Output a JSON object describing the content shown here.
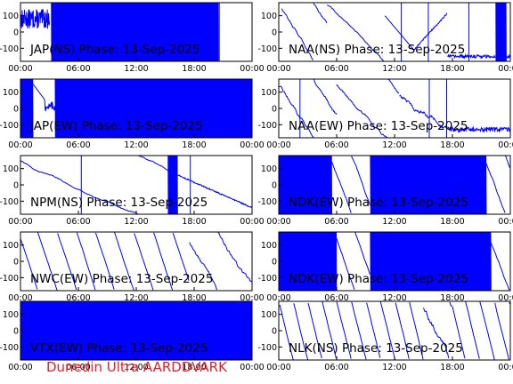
{
  "footer_text": "Dunedin Ultra AARDDVARK",
  "colors": {
    "trace": "#0000ff",
    "axes": "#000000",
    "footer": "#e0202a",
    "background": "#ffffff"
  },
  "chart_data": [
    {
      "type": "line",
      "title": "JAP(NS) Phase: 13-Sep-2025",
      "xticks": [
        "00:00",
        "06:00",
        "12:00",
        "18:00",
        "00:00"
      ],
      "yticks": [
        "100",
        "0",
        "-100"
      ],
      "ylim": [
        -180,
        180
      ],
      "xlim_hours": [
        0,
        24
      ],
      "grid": false,
      "pattern": "jap_ns"
    },
    {
      "type": "line",
      "title": "NAA(NS) Phase: 13-Sep-2025",
      "xticks": [
        "00:00",
        "06:00",
        "12:00",
        "18:00",
        "00:00"
      ],
      "yticks": [
        "100",
        "0",
        "-100"
      ],
      "ylim": [
        -180,
        180
      ],
      "xlim_hours": [
        0,
        24
      ],
      "grid": false,
      "pattern": "naa_ns"
    },
    {
      "type": "line",
      "title": "JAP(EW) Phase: 13-Sep-2025",
      "xticks": [
        "00:00",
        "06:00",
        "12:00",
        "18:00",
        "00:00"
      ],
      "yticks": [
        "100",
        "0",
        "-100"
      ],
      "ylim": [
        -180,
        180
      ],
      "xlim_hours": [
        0,
        24
      ],
      "grid": false,
      "pattern": "jap_ew"
    },
    {
      "type": "line",
      "title": "NAA(EW) Phase: 13-Sep-2025",
      "xticks": [
        "00:00",
        "06:00",
        "12:00",
        "18:00",
        "00:00"
      ],
      "yticks": [
        "100",
        "0",
        "-100"
      ],
      "ylim": [
        -180,
        180
      ],
      "xlim_hours": [
        0,
        24
      ],
      "grid": false,
      "pattern": "naa_ew"
    },
    {
      "type": "line",
      "title": "NPM(NS) Phase: 13-Sep-2025",
      "xticks": [
        "00:00",
        "06:00",
        "12:00",
        "18:00",
        "00:00"
      ],
      "yticks": [
        "100",
        "0",
        "-100"
      ],
      "ylim": [
        -180,
        180
      ],
      "xlim_hours": [
        0,
        24
      ],
      "grid": false,
      "pattern": "npm_ns"
    },
    {
      "type": "line",
      "title": "NDK(EW) Phase: 13-Sep-2025",
      "xticks": [
        "00:00",
        "06:00",
        "12:00",
        "18:00",
        "00:00"
      ],
      "yticks": [
        "100",
        "0",
        "-100"
      ],
      "ylim": [
        -180,
        180
      ],
      "xlim_hours": [
        0,
        24
      ],
      "grid": false,
      "pattern": "ndk_a"
    },
    {
      "type": "line",
      "title": "NWC(EW) Phase: 13-Sep-2025",
      "xticks": [
        "00:00",
        "06:00",
        "12:00",
        "18:00",
        "00:00"
      ],
      "yticks": [
        "100",
        "0",
        "-100"
      ],
      "ylim": [
        -180,
        180
      ],
      "xlim_hours": [
        0,
        24
      ],
      "grid": false,
      "pattern": "nwc_ew"
    },
    {
      "type": "line",
      "title": "NDK(EW) Phase: 13-Sep-2025",
      "xticks": [
        "00:00",
        "06:00",
        "12:00",
        "18:00",
        "00:00"
      ],
      "yticks": [
        "100",
        "0",
        "-100"
      ],
      "ylim": [
        -180,
        180
      ],
      "xlim_hours": [
        0,
        24
      ],
      "grid": false,
      "pattern": "ndk_b"
    },
    {
      "type": "line",
      "title": "VTX(EW) Phase: 13-Sep-2025",
      "xticks": [
        "00:00",
        "06:00",
        "12:00",
        "18:00",
        "00:00"
      ],
      "yticks": [
        "100",
        "0",
        "-100"
      ],
      "ylim": [
        -180,
        180
      ],
      "xlim_hours": [
        0,
        24
      ],
      "grid": false,
      "pattern": "vtx_ew"
    },
    {
      "type": "line",
      "title": "NLK(NS) Phase: 13-Sep-2025",
      "xticks": [
        "00:00",
        "06:00",
        "12:00",
        "18:00",
        "00:00"
      ],
      "yticks": [
        "100",
        "0",
        "-100"
      ],
      "ylim": [
        -180,
        180
      ],
      "xlim_hours": [
        0,
        24
      ],
      "grid": false,
      "pattern": "nlk_ns"
    }
  ]
}
